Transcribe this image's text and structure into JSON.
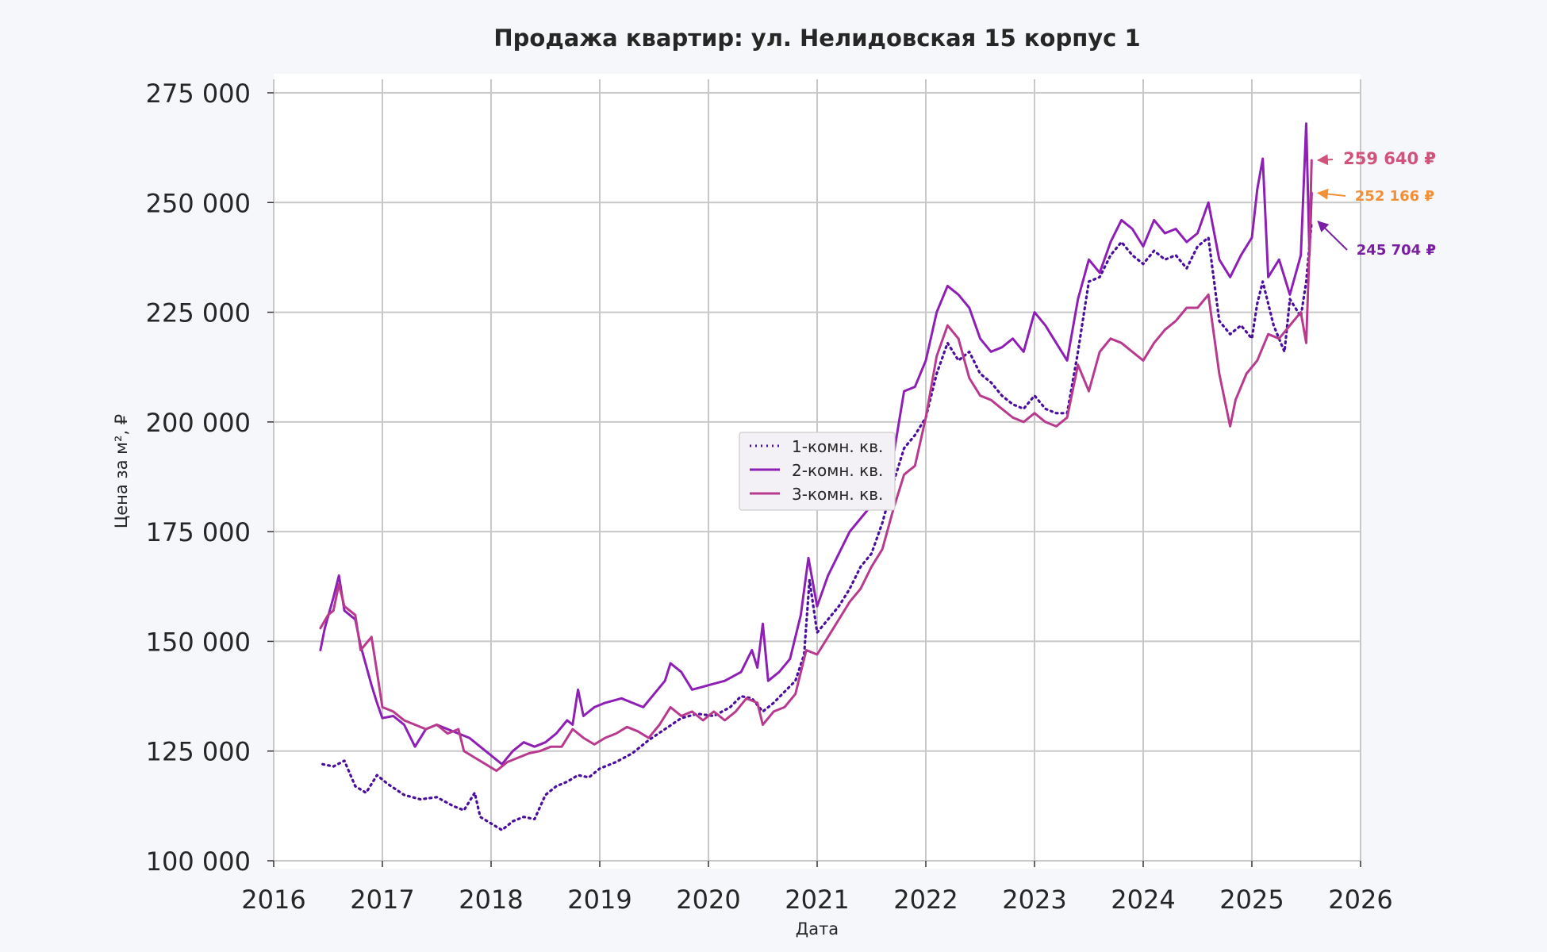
{
  "chart_data": {
    "type": "line",
    "title": "Продажа квартир: ул. Нелидовская 15 корпус 1",
    "xlabel": "Дата",
    "ylabel": "Цена за м², ₽",
    "xlim": [
      2016,
      2026
    ],
    "ylim": [
      100000,
      275000
    ],
    "x_ticks": [
      "2016",
      "2017",
      "2018",
      "2019",
      "2020",
      "2021",
      "2022",
      "2023",
      "2024",
      "2025",
      "2026"
    ],
    "y_ticks": [
      "100 000",
      "125 000",
      "150 000",
      "175 000",
      "200 000",
      "225 000",
      "250 000",
      "275 000"
    ],
    "grid": true,
    "legend_position": "center",
    "series": [
      {
        "name": "1-комн. кв.",
        "color": "#4a0e9e",
        "style": "dotted",
        "last_label": "245 704 ₽",
        "points": [
          [
            2016.45,
            122000
          ],
          [
            2016.55,
            121500
          ],
          [
            2016.65,
            122800
          ],
          [
            2016.75,
            117000
          ],
          [
            2016.85,
            115500
          ],
          [
            2016.95,
            119500
          ],
          [
            2017.05,
            117500
          ],
          [
            2017.2,
            115000
          ],
          [
            2017.35,
            114000
          ],
          [
            2017.5,
            114500
          ],
          [
            2017.65,
            112500
          ],
          [
            2017.75,
            111500
          ],
          [
            2017.85,
            115500
          ],
          [
            2017.9,
            110000
          ],
          [
            2018.0,
            108500
          ],
          [
            2018.1,
            107000
          ],
          [
            2018.2,
            109000
          ],
          [
            2018.3,
            110000
          ],
          [
            2018.4,
            109500
          ],
          [
            2018.5,
            115000
          ],
          [
            2018.6,
            117000
          ],
          [
            2018.7,
            118000
          ],
          [
            2018.8,
            119500
          ],
          [
            2018.9,
            119000
          ],
          [
            2019.0,
            121000
          ],
          [
            2019.15,
            122500
          ],
          [
            2019.3,
            124500
          ],
          [
            2019.45,
            127500
          ],
          [
            2019.6,
            130000
          ],
          [
            2019.75,
            132500
          ],
          [
            2019.9,
            133500
          ],
          [
            2020.05,
            133000
          ],
          [
            2020.2,
            135000
          ],
          [
            2020.3,
            137500
          ],
          [
            2020.4,
            137000
          ],
          [
            2020.5,
            134000
          ],
          [
            2020.6,
            136000
          ],
          [
            2020.7,
            138500
          ],
          [
            2020.8,
            141000
          ],
          [
            2020.88,
            147000
          ],
          [
            2020.93,
            164000
          ],
          [
            2021.0,
            152000
          ],
          [
            2021.1,
            155000
          ],
          [
            2021.2,
            158000
          ],
          [
            2021.3,
            162000
          ],
          [
            2021.4,
            167000
          ],
          [
            2021.5,
            170000
          ],
          [
            2021.6,
            177000
          ],
          [
            2021.7,
            186000
          ],
          [
            2021.8,
            194000
          ],
          [
            2021.9,
            197000
          ],
          [
            2022.0,
            201000
          ],
          [
            2022.1,
            211000
          ],
          [
            2022.2,
            218000
          ],
          [
            2022.3,
            214000
          ],
          [
            2022.4,
            216000
          ],
          [
            2022.5,
            211000
          ],
          [
            2022.6,
            209000
          ],
          [
            2022.7,
            206000
          ],
          [
            2022.8,
            204000
          ],
          [
            2022.9,
            203000
          ],
          [
            2023.0,
            206000
          ],
          [
            2023.1,
            203000
          ],
          [
            2023.2,
            202000
          ],
          [
            2023.3,
            202000
          ],
          [
            2023.4,
            216000
          ],
          [
            2023.5,
            232000
          ],
          [
            2023.6,
            233000
          ],
          [
            2023.7,
            238000
          ],
          [
            2023.8,
            241000
          ],
          [
            2023.9,
            238000
          ],
          [
            2024.0,
            236000
          ],
          [
            2024.1,
            239000
          ],
          [
            2024.2,
            237000
          ],
          [
            2024.3,
            238000
          ],
          [
            2024.4,
            235000
          ],
          [
            2024.5,
            240000
          ],
          [
            2024.6,
            242000
          ],
          [
            2024.7,
            223000
          ],
          [
            2024.8,
            220000
          ],
          [
            2024.9,
            222000
          ],
          [
            2025.0,
            219000
          ],
          [
            2025.05,
            227000
          ],
          [
            2025.1,
            232000
          ],
          [
            2025.2,
            222000
          ],
          [
            2025.3,
            216000
          ],
          [
            2025.35,
            228000
          ],
          [
            2025.45,
            224000
          ],
          [
            2025.5,
            232000
          ],
          [
            2025.55,
            245704
          ]
        ]
      },
      {
        "name": "2-комн. кв.",
        "color": "#8e1fb5",
        "style": "solid",
        "last_label": "252 166 ₽",
        "points": [
          [
            2016.43,
            148000
          ],
          [
            2016.47,
            153000
          ],
          [
            2016.55,
            160000
          ],
          [
            2016.6,
            165000
          ],
          [
            2016.65,
            157000
          ],
          [
            2016.75,
            155000
          ],
          [
            2016.8,
            149000
          ],
          [
            2016.9,
            140000
          ],
          [
            2016.95,
            136000
          ],
          [
            2017.0,
            132500
          ],
          [
            2017.1,
            133000
          ],
          [
            2017.2,
            131000
          ],
          [
            2017.3,
            126000
          ],
          [
            2017.4,
            130000
          ],
          [
            2017.5,
            131000
          ],
          [
            2017.6,
            130000
          ],
          [
            2017.7,
            129000
          ],
          [
            2017.8,
            128000
          ],
          [
            2017.9,
            126000
          ],
          [
            2018.0,
            124000
          ],
          [
            2018.1,
            122000
          ],
          [
            2018.2,
            125000
          ],
          [
            2018.3,
            127000
          ],
          [
            2018.4,
            126000
          ],
          [
            2018.5,
            127000
          ],
          [
            2018.6,
            129000
          ],
          [
            2018.7,
            132000
          ],
          [
            2018.75,
            131000
          ],
          [
            2018.8,
            139000
          ],
          [
            2018.85,
            133000
          ],
          [
            2018.95,
            135000
          ],
          [
            2019.05,
            136000
          ],
          [
            2019.2,
            137000
          ],
          [
            2019.3,
            136000
          ],
          [
            2019.4,
            135000
          ],
          [
            2019.5,
            138000
          ],
          [
            2019.6,
            141000
          ],
          [
            2019.65,
            145000
          ],
          [
            2019.75,
            143000
          ],
          [
            2019.85,
            139000
          ],
          [
            2020.0,
            140000
          ],
          [
            2020.15,
            141000
          ],
          [
            2020.3,
            143000
          ],
          [
            2020.4,
            148000
          ],
          [
            2020.45,
            144000
          ],
          [
            2020.5,
            154000
          ],
          [
            2020.55,
            141000
          ],
          [
            2020.65,
            143000
          ],
          [
            2020.75,
            146000
          ],
          [
            2020.85,
            156000
          ],
          [
            2020.92,
            169000
          ],
          [
            2021.0,
            158000
          ],
          [
            2021.1,
            165000
          ],
          [
            2021.2,
            170000
          ],
          [
            2021.3,
            175000
          ],
          [
            2021.4,
            178000
          ],
          [
            2021.5,
            181000
          ],
          [
            2021.6,
            183000
          ],
          [
            2021.7,
            192000
          ],
          [
            2021.8,
            207000
          ],
          [
            2021.9,
            208000
          ],
          [
            2022.0,
            214000
          ],
          [
            2022.1,
            225000
          ],
          [
            2022.2,
            231000
          ],
          [
            2022.3,
            229000
          ],
          [
            2022.4,
            226000
          ],
          [
            2022.5,
            219000
          ],
          [
            2022.6,
            216000
          ],
          [
            2022.7,
            217000
          ],
          [
            2022.8,
            219000
          ],
          [
            2022.9,
            216000
          ],
          [
            2023.0,
            225000
          ],
          [
            2023.1,
            222000
          ],
          [
            2023.2,
            218000
          ],
          [
            2023.3,
            214000
          ],
          [
            2023.4,
            228000
          ],
          [
            2023.5,
            237000
          ],
          [
            2023.6,
            234000
          ],
          [
            2023.7,
            241000
          ],
          [
            2023.8,
            246000
          ],
          [
            2023.9,
            244000
          ],
          [
            2024.0,
            240000
          ],
          [
            2024.1,
            246000
          ],
          [
            2024.2,
            243000
          ],
          [
            2024.3,
            244000
          ],
          [
            2024.4,
            241000
          ],
          [
            2024.5,
            243000
          ],
          [
            2024.6,
            250000
          ],
          [
            2024.7,
            237000
          ],
          [
            2024.8,
            233000
          ],
          [
            2024.9,
            238000
          ],
          [
            2025.0,
            242000
          ],
          [
            2025.05,
            253000
          ],
          [
            2025.1,
            260000
          ],
          [
            2025.15,
            233000
          ],
          [
            2025.25,
            237000
          ],
          [
            2025.35,
            229000
          ],
          [
            2025.45,
            238000
          ],
          [
            2025.5,
            268000
          ],
          [
            2025.53,
            238000
          ],
          [
            2025.55,
            252166
          ]
        ]
      },
      {
        "name": "3-комн. кв.",
        "color": "#b83a8e",
        "style": "solid",
        "last_label": "259 640 ₽",
        "points": [
          [
            2016.43,
            153000
          ],
          [
            2016.5,
            156000
          ],
          [
            2016.55,
            157000
          ],
          [
            2016.6,
            163000
          ],
          [
            2016.65,
            158000
          ],
          [
            2016.75,
            156000
          ],
          [
            2016.8,
            148000
          ],
          [
            2016.9,
            151000
          ],
          [
            2016.95,
            143000
          ],
          [
            2017.0,
            135000
          ],
          [
            2017.1,
            134000
          ],
          [
            2017.2,
            132000
          ],
          [
            2017.3,
            131000
          ],
          [
            2017.4,
            130000
          ],
          [
            2017.5,
            131000
          ],
          [
            2017.6,
            129000
          ],
          [
            2017.7,
            130000
          ],
          [
            2017.75,
            125000
          ],
          [
            2017.85,
            123500
          ],
          [
            2017.95,
            122000
          ],
          [
            2018.05,
            120500
          ],
          [
            2018.15,
            122500
          ],
          [
            2018.25,
            123500
          ],
          [
            2018.35,
            124500
          ],
          [
            2018.45,
            125000
          ],
          [
            2018.55,
            126000
          ],
          [
            2018.65,
            126000
          ],
          [
            2018.75,
            130000
          ],
          [
            2018.85,
            128000
          ],
          [
            2018.95,
            126500
          ],
          [
            2019.05,
            128000
          ],
          [
            2019.15,
            129000
          ],
          [
            2019.25,
            130500
          ],
          [
            2019.35,
            129500
          ],
          [
            2019.45,
            128000
          ],
          [
            2019.55,
            131000
          ],
          [
            2019.65,
            135000
          ],
          [
            2019.75,
            133000
          ],
          [
            2019.85,
            134000
          ],
          [
            2019.95,
            132000
          ],
          [
            2020.05,
            134000
          ],
          [
            2020.15,
            132000
          ],
          [
            2020.25,
            134000
          ],
          [
            2020.35,
            137000
          ],
          [
            2020.45,
            136000
          ],
          [
            2020.5,
            131000
          ],
          [
            2020.6,
            134000
          ],
          [
            2020.7,
            135000
          ],
          [
            2020.8,
            138000
          ],
          [
            2020.9,
            148000
          ],
          [
            2021.0,
            147000
          ],
          [
            2021.1,
            151000
          ],
          [
            2021.2,
            155000
          ],
          [
            2021.3,
            159000
          ],
          [
            2021.4,
            162000
          ],
          [
            2021.5,
            167000
          ],
          [
            2021.6,
            171000
          ],
          [
            2021.7,
            180000
          ],
          [
            2021.8,
            188000
          ],
          [
            2021.9,
            190000
          ],
          [
            2022.0,
            201000
          ],
          [
            2022.1,
            215000
          ],
          [
            2022.2,
            222000
          ],
          [
            2022.3,
            219000
          ],
          [
            2022.4,
            210000
          ],
          [
            2022.5,
            206000
          ],
          [
            2022.6,
            205000
          ],
          [
            2022.7,
            203000
          ],
          [
            2022.8,
            201000
          ],
          [
            2022.9,
            200000
          ],
          [
            2023.0,
            202000
          ],
          [
            2023.1,
            200000
          ],
          [
            2023.2,
            199000
          ],
          [
            2023.3,
            201000
          ],
          [
            2023.4,
            213000
          ],
          [
            2023.5,
            207000
          ],
          [
            2023.6,
            216000
          ],
          [
            2023.7,
            219000
          ],
          [
            2023.8,
            218000
          ],
          [
            2023.9,
            216000
          ],
          [
            2024.0,
            214000
          ],
          [
            2024.1,
            218000
          ],
          [
            2024.2,
            221000
          ],
          [
            2024.3,
            223000
          ],
          [
            2024.4,
            226000
          ],
          [
            2024.5,
            226000
          ],
          [
            2024.6,
            229000
          ],
          [
            2024.7,
            211000
          ],
          [
            2024.8,
            199000
          ],
          [
            2024.85,
            205000
          ],
          [
            2024.95,
            211000
          ],
          [
            2025.05,
            214000
          ],
          [
            2025.15,
            220000
          ],
          [
            2025.25,
            219000
          ],
          [
            2025.35,
            222000
          ],
          [
            2025.45,
            225000
          ],
          [
            2025.5,
            218000
          ],
          [
            2025.53,
            240000
          ],
          [
            2025.55,
            259640
          ]
        ]
      }
    ]
  }
}
